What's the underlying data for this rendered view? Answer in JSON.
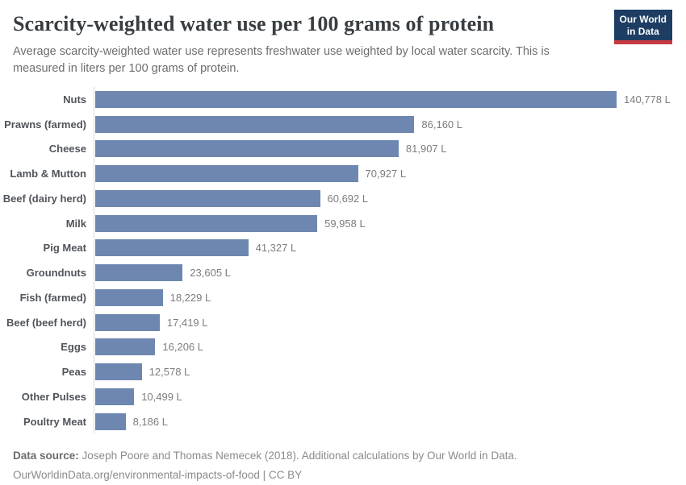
{
  "header": {
    "title": "Scarcity-weighted water use per 100 grams of protein",
    "subtitle": "Average scarcity-weighted water use represents freshwater use weighted by local water scarcity. This is measured in liters per 100 grams of protein.",
    "logo": {
      "line1": "Our World",
      "line2": "in Data"
    }
  },
  "chart_data": {
    "type": "bar",
    "orientation": "horizontal",
    "title": "Scarcity-weighted water use per 100 grams of protein",
    "unit": "liters per 100 grams of protein",
    "xlim": [
      0,
      140778
    ],
    "grid": false,
    "bar_color": "#6e87b0",
    "categories": [
      "Nuts",
      "Prawns (farmed)",
      "Cheese",
      "Lamb & Mutton",
      "Beef (dairy herd)",
      "Milk",
      "Pig Meat",
      "Groundnuts",
      "Fish (farmed)",
      "Beef (beef herd)",
      "Eggs",
      "Peas",
      "Other Pulses",
      "Poultry Meat"
    ],
    "values": [
      140778,
      86160,
      81907,
      70927,
      60692,
      59958,
      41327,
      23605,
      18229,
      17419,
      16206,
      12578,
      10499,
      8186
    ],
    "value_labels": [
      "140,778 L",
      "86,160 L",
      "81,907 L",
      "70,927 L",
      "60,692 L",
      "59,958 L",
      "41,327 L",
      "23,605 L",
      "18,229 L",
      "17,419 L",
      "16,206 L",
      "12,578 L",
      "10,499 L",
      "8,186 L"
    ]
  },
  "footer": {
    "source_label": "Data source:",
    "source_text": "Joseph Poore and Thomas Nemecek (2018). Additional calculations by Our World in Data.",
    "link_text": "OurWorldinData.org/environmental-impacts-of-food | CC BY"
  },
  "colors": {
    "bar": "#6e87b0",
    "axis_line": "#d8d8d8",
    "title_text": "#383d41",
    "subtitle_text": "#6d6d6d",
    "category_text": "#50555b",
    "value_text": "#7d7d7d",
    "logo_background": "#1d3d63",
    "logo_stripe": "#c73a40"
  }
}
